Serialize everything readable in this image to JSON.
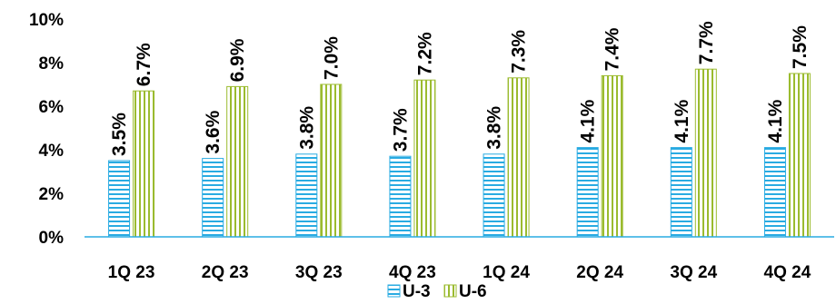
{
  "chart_data": {
    "type": "bar",
    "categories": [
      "1Q 23",
      "2Q 23",
      "3Q 23",
      "4Q 23",
      "1Q 24",
      "2Q 24",
      "3Q 24",
      "4Q 24"
    ],
    "series": [
      {
        "name": "U-3",
        "values": [
          3.5,
          3.6,
          3.8,
          3.7,
          3.8,
          4.1,
          4.1,
          4.1
        ],
        "labels": [
          "3.5%",
          "3.6%",
          "3.8%",
          "3.7%",
          "3.8%",
          "4.1%",
          "4.1%",
          "4.1%"
        ],
        "color": "#29ABE2",
        "pattern": "horizontal-lines"
      },
      {
        "name": "U-6",
        "values": [
          6.7,
          6.9,
          7.0,
          7.2,
          7.3,
          7.4,
          7.7,
          7.5
        ],
        "labels": [
          "6.7%",
          "6.9%",
          "7.0%",
          "7.2%",
          "7.3%",
          "7.4%",
          "7.7%",
          "7.5%"
        ],
        "color": "#9BBB2F",
        "pattern": "vertical-lines"
      }
    ],
    "yticks": [
      "0%",
      "2%",
      "4%",
      "6%",
      "8%",
      "10%"
    ],
    "ylim": [
      0,
      10
    ],
    "grid": false,
    "legend": "bottom-center",
    "title": "",
    "xlabel": "",
    "ylabel": ""
  }
}
